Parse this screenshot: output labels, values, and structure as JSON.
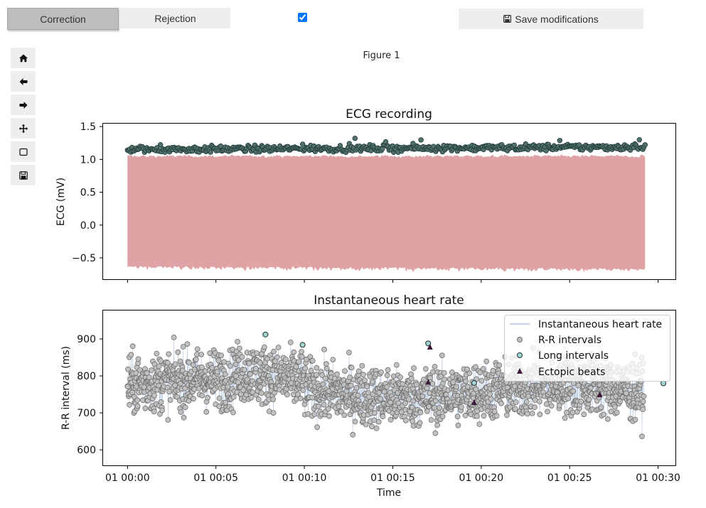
{
  "toolbar": {
    "correction_label": "Correction",
    "rejection_label": "Rejection",
    "checkbox_checked": true,
    "save_label": "Save modifications"
  },
  "nav_tools": [
    {
      "name": "home-icon"
    },
    {
      "name": "back-arrow-icon"
    },
    {
      "name": "forward-arrow-icon"
    },
    {
      "name": "pan-icon"
    },
    {
      "name": "zoom-rect-icon"
    },
    {
      "name": "save-figure-icon"
    }
  ],
  "figure": {
    "title": "Figure 1"
  },
  "chart_data": [
    {
      "type": "area",
      "title": "ECG recording",
      "xlabel": "",
      "ylabel": "ECG (mV)",
      "ylim": [
        -0.83,
        1.55
      ],
      "yticks": [
        -0.5,
        0.0,
        0.5,
        1.0,
        1.5
      ],
      "ytick_labels": [
        "−0.5",
        "0.0",
        "0.5",
        "1.0",
        "1.5"
      ],
      "x_range_minutes": [
        0,
        29.3
      ],
      "signal_top": 1.05,
      "signal_bottom": -0.62,
      "r_peak_level": 1.15,
      "colors": {
        "signal": "#dfa3a6",
        "peaks": "#52706c",
        "peak_edge": "#1f3a36"
      }
    },
    {
      "type": "scatter",
      "title": "Instantaneous heart rate",
      "xlabel": "Time",
      "ylabel": "R-R interval (ms)",
      "ylim": [
        557,
        978
      ],
      "yticks": [
        600,
        700,
        800,
        900
      ],
      "xlim_minutes": [
        -1.4,
        31.0
      ],
      "xticks_minutes": [
        0,
        5,
        10,
        15,
        20,
        25,
        30
      ],
      "xtick_labels": [
        "01 00:00",
        "01 00:05",
        "01 00:10",
        "01 00:15",
        "01 00:20",
        "01 00:25",
        "01 00:30"
      ],
      "rr_mean_ms": 775,
      "rr_spread_ms": 75,
      "long_intervals": [
        [
          7.8,
          912
        ],
        [
          9.9,
          884
        ],
        [
          17.0,
          888
        ],
        [
          19.6,
          781
        ],
        [
          30.3,
          780
        ]
      ],
      "ectopic_beats": [
        [
          17.1,
          878
        ],
        [
          19.6,
          728
        ],
        [
          17.0,
          783
        ],
        [
          26.7,
          749
        ]
      ],
      "legend": [
        {
          "label": "Instantaneous heart rate",
          "marker": "line"
        },
        {
          "label": "R-R intervals",
          "marker": "circle"
        },
        {
          "label": "Long intervals",
          "marker": "circle-teal"
        },
        {
          "label": "Ectopic beats",
          "marker": "triangle"
        }
      ],
      "legend_position": "top-right",
      "colors": {
        "line": "#b0c4de",
        "points": "#c0c0c0",
        "point_edge": "#6e6e6e",
        "long": "#9fd6d2",
        "ectopic": "#3d1a3d"
      }
    }
  ]
}
